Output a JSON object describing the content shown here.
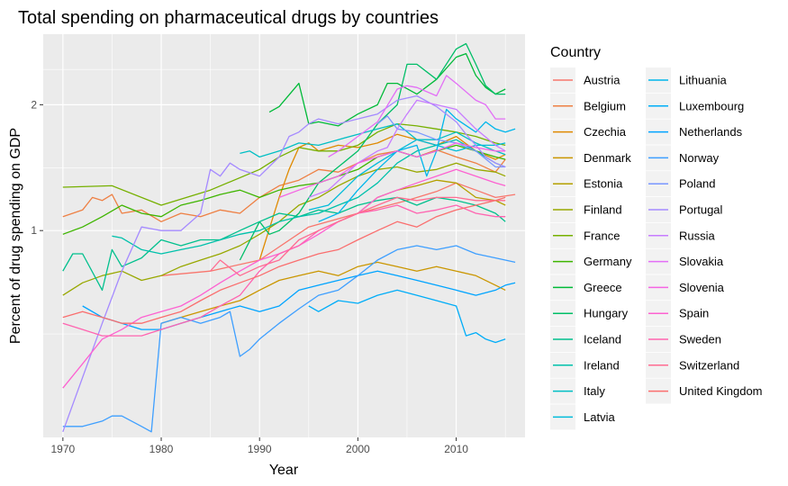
{
  "chart_data": {
    "type": "line",
    "title": "Total spending on pharmaceutical drugs by countries",
    "xlabel": "Year",
    "ylabel": "Percent of drug spending on GDP",
    "y_scale": "log",
    "xlim": [
      1968,
      2017
    ],
    "ylim": [
      0.32,
      2.95
    ],
    "x_ticks": [
      1970,
      1980,
      1990,
      2000,
      2010
    ],
    "y_ticks": [
      1,
      2
    ],
    "grid": true,
    "legend": {
      "title": "Country",
      "position": "right",
      "columns": 2
    },
    "series": [
      {
        "name": "Austria",
        "color": "#F8766D",
        "x": [
          1980,
          1985,
          1990,
          1995,
          2000,
          2005,
          2008,
          2010,
          2012,
          2014,
          2016
        ],
        "y": [
          0.78,
          0.8,
          0.85,
          1.02,
          1.1,
          1.18,
          1.24,
          1.3,
          1.25,
          1.2,
          1.22
        ]
      },
      {
        "name": "Belgium",
        "color": "#EE8044",
        "x": [
          1970,
          1972,
          1973,
          1974,
          1975,
          1976,
          1978,
          1980,
          1982,
          1984,
          1986,
          1988,
          1990,
          1992,
          1994,
          1996,
          1998,
          2000,
          2002,
          2004,
          2006,
          2008,
          2010,
          2012,
          2014,
          2015
        ],
        "y": [
          1.08,
          1.12,
          1.2,
          1.18,
          1.22,
          1.1,
          1.12,
          1.05,
          1.1,
          1.08,
          1.12,
          1.1,
          1.2,
          1.28,
          1.32,
          1.4,
          1.38,
          1.45,
          1.52,
          1.55,
          1.5,
          1.56,
          1.5,
          1.45,
          1.38,
          1.48
        ]
      },
      {
        "name": "Czechia",
        "color": "#DF8A00",
        "x": [
          1990,
          1992,
          1993,
          1994,
          1995,
          1996,
          1998,
          2000,
          2002,
          2004,
          2006,
          2008,
          2010,
          2012,
          2014,
          2015
        ],
        "y": [
          0.85,
          1.2,
          1.4,
          1.58,
          1.62,
          1.55,
          1.6,
          1.58,
          1.62,
          1.7,
          1.65,
          1.6,
          1.68,
          1.55,
          1.48,
          1.52
        ]
      },
      {
        "name": "Denmark",
        "color": "#CA9600",
        "x": [
          1980,
          1982,
          1984,
          1986,
          1988,
          1990,
          1992,
          1994,
          1996,
          1998,
          2000,
          2002,
          2004,
          2006,
          2008,
          2010,
          2012,
          2014,
          2015
        ],
        "y": [
          0.6,
          0.62,
          0.64,
          0.66,
          0.68,
          0.72,
          0.76,
          0.78,
          0.8,
          0.78,
          0.82,
          0.84,
          0.82,
          0.8,
          0.82,
          0.8,
          0.78,
          0.74,
          0.72
        ]
      },
      {
        "name": "Estonia",
        "color": "#B4A000",
        "x": [
          1998,
          2000,
          2002,
          2004,
          2006,
          2008,
          2010,
          2012,
          2014,
          2015
        ],
        "y": [
          1.05,
          1.1,
          1.2,
          1.25,
          1.28,
          1.32,
          1.3,
          1.2,
          1.18,
          1.15
        ]
      },
      {
        "name": "Finland",
        "color": "#98A800",
        "x": [
          1970,
          1972,
          1974,
          1976,
          1978,
          1980,
          1982,
          1984,
          1986,
          1988,
          1990,
          1992,
          1994,
          1996,
          1998,
          2000,
          2002,
          2004,
          2006,
          2008,
          2010,
          2012,
          2014,
          2015
        ],
        "y": [
          0.7,
          0.75,
          0.78,
          0.8,
          0.76,
          0.78,
          0.82,
          0.85,
          0.88,
          0.92,
          0.98,
          1.05,
          1.15,
          1.2,
          1.28,
          1.35,
          1.4,
          1.42,
          1.38,
          1.4,
          1.45,
          1.4,
          1.38,
          1.35
        ]
      },
      {
        "name": "France",
        "color": "#76B000",
        "x": [
          1970,
          1975,
          1980,
          1985,
          1990,
          1992,
          1994,
          1996,
          1998,
          2000,
          2002,
          2004,
          2006,
          2008,
          2010,
          2012,
          2014,
          2015
        ],
        "y": [
          1.27,
          1.28,
          1.15,
          1.25,
          1.4,
          1.5,
          1.58,
          1.55,
          1.55,
          1.6,
          1.72,
          1.8,
          1.78,
          1.75,
          1.72,
          1.68,
          1.62,
          1.6
        ]
      },
      {
        "name": "Germany",
        "color": "#3EB500",
        "x": [
          1970,
          1972,
          1974,
          1976,
          1978,
          1980,
          1982,
          1984,
          1986,
          1988,
          1990,
          1992,
          1994,
          1996,
          1998,
          2000,
          2002,
          2004,
          2006,
          2008,
          2010,
          2012,
          2014,
          2015
        ],
        "y": [
          0.98,
          1.02,
          1.08,
          1.15,
          1.1,
          1.08,
          1.15,
          1.18,
          1.22,
          1.25,
          1.2,
          1.25,
          1.28,
          1.3,
          1.35,
          1.4,
          1.5,
          1.55,
          1.5,
          1.55,
          1.6,
          1.55,
          1.5,
          1.48
        ]
      },
      {
        "name": "Greece",
        "color": "#00BA38",
        "x": [
          1991,
          1992,
          1994,
          1995,
          1996,
          1998,
          2000,
          2002,
          2003,
          2004,
          2006,
          2008,
          2010,
          2011,
          2012,
          2013,
          2014,
          2015
        ],
        "y": [
          1.92,
          1.98,
          2.25,
          1.8,
          1.82,
          1.78,
          1.9,
          2.0,
          2.25,
          2.25,
          2.12,
          2.3,
          2.6,
          2.65,
          2.35,
          2.2,
          2.12,
          2.18
        ]
      },
      {
        "name": "Hungary",
        "color": "#00BE67",
        "x": [
          1988,
          1990,
          1991,
          1992,
          1994,
          1996,
          1998,
          2000,
          2002,
          2004,
          2005,
          2006,
          2008,
          2010,
          2011,
          2012,
          2013,
          2014,
          2015
        ],
        "y": [
          0.85,
          1.05,
          0.98,
          1.0,
          1.1,
          1.3,
          1.42,
          1.55,
          1.8,
          2.0,
          2.5,
          2.5,
          2.3,
          2.72,
          2.8,
          2.5,
          2.22,
          2.12,
          2.12
        ]
      },
      {
        "name": "Iceland",
        "color": "#00C08D",
        "x": [
          1970,
          1971,
          1972,
          1974,
          1975,
          1976,
          1978,
          1980,
          1982,
          1984,
          1986,
          1988,
          1990,
          1992,
          1994,
          1996,
          1998,
          2000,
          2002,
          2004,
          2006,
          2008,
          2010,
          2012,
          2014,
          2015
        ],
        "y": [
          0.8,
          0.88,
          0.88,
          0.72,
          0.9,
          0.82,
          0.86,
          0.95,
          0.92,
          0.95,
          0.95,
          1.0,
          1.05,
          1.1,
          1.08,
          1.12,
          1.1,
          1.15,
          1.18,
          1.2,
          1.15,
          1.2,
          1.18,
          1.15,
          1.1,
          1.05
        ]
      },
      {
        "name": "Ireland",
        "color": "#00C1AB",
        "x": [
          1975,
          1976,
          1978,
          1980,
          1982,
          1984,
          1986,
          1988,
          1990,
          1992,
          1994,
          1996,
          1998,
          2000,
          2002,
          2004,
          2006,
          2008,
          2010,
          2012,
          2014,
          2015
        ],
        "y": [
          0.97,
          0.96,
          0.9,
          0.88,
          0.9,
          0.92,
          0.95,
          0.98,
          1.0,
          1.05,
          1.08,
          1.1,
          1.15,
          1.2,
          1.3,
          1.45,
          1.55,
          1.6,
          1.65,
          1.55,
          1.45,
          1.42
        ]
      },
      {
        "name": "Italy",
        "color": "#00BFC4",
        "x": [
          1988,
          1989,
          1990,
          1992,
          1994,
          1996,
          1998,
          2000,
          2002,
          2004,
          2006,
          2008,
          2010,
          2012,
          2014,
          2015
        ],
        "y": [
          1.53,
          1.55,
          1.5,
          1.55,
          1.62,
          1.6,
          1.65,
          1.7,
          1.75,
          1.8,
          1.65,
          1.65,
          1.72,
          1.62,
          1.55,
          1.52
        ]
      },
      {
        "name": "Latvia",
        "color": "#00BBDA",
        "x": [
          1995,
          1997,
          2000,
          2002,
          2004,
          2006,
          2008,
          2010,
          2012,
          2014,
          2015
        ],
        "y": [
          1.12,
          1.15,
          1.35,
          1.45,
          1.55,
          1.65,
          1.6,
          1.55,
          1.6,
          1.6,
          1.62
        ]
      },
      {
        "name": "Lithuania",
        "color": "#00B6EB",
        "x": [
          1996,
          1998,
          2000,
          2002,
          2004,
          2006,
          2007,
          2008,
          2009,
          2010,
          2012,
          2013,
          2014,
          2015,
          2016
        ],
        "y": [
          1.05,
          1.1,
          1.25,
          1.4,
          1.55,
          1.6,
          1.35,
          1.55,
          1.95,
          1.85,
          1.72,
          1.82,
          1.75,
          1.72,
          1.75
        ]
      },
      {
        "name": "Luxembourg",
        "color": "#00ADF8",
        "x": [
          1995,
          1996,
          1998,
          2000,
          2002,
          2004,
          2006,
          2008,
          2010,
          2011,
          2012,
          2013,
          2014,
          2015
        ],
        "y": [
          0.66,
          0.64,
          0.68,
          0.67,
          0.7,
          0.72,
          0.7,
          0.68,
          0.66,
          0.56,
          0.57,
          0.55,
          0.54,
          0.55
        ]
      },
      {
        "name": "Netherlands",
        "color": "#00A4FF",
        "x": [
          1972,
          1974,
          1976,
          1978,
          1980,
          1982,
          1984,
          1986,
          1988,
          1990,
          1992,
          1994,
          1996,
          1998,
          2000,
          2002,
          2004,
          2006,
          2008,
          2010,
          2012,
          2014,
          2015,
          2016
        ],
        "y": [
          0.66,
          0.62,
          0.6,
          0.58,
          0.58,
          0.6,
          0.62,
          0.64,
          0.66,
          0.64,
          0.66,
          0.72,
          0.74,
          0.76,
          0.78,
          0.8,
          0.78,
          0.76,
          0.74,
          0.72,
          0.7,
          0.72,
          0.74,
          0.75
        ]
      },
      {
        "name": "Norway",
        "color": "#3E9FFF",
        "x": [
          1970,
          1972,
          1974,
          1975,
          1976,
          1978,
          1979,
          1980,
          1982,
          1984,
          1986,
          1987,
          1988,
          1989,
          1990,
          1992,
          1994,
          1996,
          1998,
          2000,
          2002,
          2004,
          2006,
          2008,
          2010,
          2012,
          2014,
          2016
        ],
        "y": [
          0.34,
          0.34,
          0.35,
          0.36,
          0.36,
          0.34,
          0.33,
          0.6,
          0.62,
          0.6,
          0.62,
          0.64,
          0.5,
          0.52,
          0.55,
          0.6,
          0.65,
          0.7,
          0.72,
          0.78,
          0.85,
          0.9,
          0.92,
          0.9,
          0.92,
          0.88,
          0.86,
          0.84
        ]
      },
      {
        "name": "Poland",
        "color": "#7997FF",
        "x": [
          2002,
          2003,
          2004,
          2006,
          2008,
          2010,
          2012,
          2014,
          2015
        ],
        "y": [
          1.8,
          1.88,
          1.75,
          1.72,
          1.65,
          1.62,
          1.55,
          1.42,
          1.42
        ]
      },
      {
        "name": "Portugal",
        "color": "#A58AFF",
        "x": [
          1970,
          1974,
          1976,
          1978,
          1980,
          1982,
          1984,
          1985,
          1986,
          1987,
          1988,
          1990,
          1992,
          1993,
          1994,
          1995,
          1996,
          1998,
          2000,
          2002,
          2004,
          2006,
          2008,
          2010,
          2011,
          2012,
          2013,
          2014,
          2015
        ],
        "y": [
          0.33,
          0.6,
          0.8,
          1.02,
          1.0,
          1.0,
          1.1,
          1.4,
          1.35,
          1.45,
          1.4,
          1.35,
          1.5,
          1.68,
          1.72,
          1.8,
          1.85,
          1.8,
          1.85,
          1.9,
          2.05,
          2.1,
          1.98,
          1.82,
          1.7,
          1.6,
          1.5,
          1.45,
          1.42
        ]
      },
      {
        "name": "Russia",
        "color": "#C77CFF",
        "x": [
          1995,
          1997,
          2000,
          2002,
          2003,
          2004,
          2005,
          2006,
          2008,
          2010,
          2012,
          2014,
          2015
        ],
        "y": [
          1.2,
          1.25,
          1.45,
          1.55,
          1.58,
          1.75,
          1.9,
          2.05,
          2.0,
          1.95,
          1.75,
          1.6,
          1.55
        ]
      },
      {
        "name": "Slovakia",
        "color": "#E36EF6",
        "x": [
          1997,
          1998,
          2000,
          2002,
          2004,
          2005,
          2006,
          2008,
          2009,
          2010,
          2012,
          2013,
          2014,
          2015
        ],
        "y": [
          1.5,
          1.55,
          1.68,
          1.82,
          2.18,
          2.22,
          2.2,
          2.1,
          2.35,
          2.25,
          2.05,
          2.0,
          1.85,
          1.85
        ]
      },
      {
        "name": "Slovenia",
        "color": "#F564E3",
        "x": [
          1992,
          1994,
          1996,
          1998,
          2000,
          2002,
          2004,
          2006,
          2008,
          2010,
          2012,
          2014,
          2015
        ],
        "y": [
          1.2,
          1.25,
          1.3,
          1.35,
          1.45,
          1.5,
          1.55,
          1.5,
          1.55,
          1.62,
          1.58,
          1.55,
          1.55
        ]
      },
      {
        "name": "Spain",
        "color": "#FD61D1",
        "x": [
          1970,
          1972,
          1974,
          1976,
          1978,
          1980,
          1982,
          1984,
          1986,
          1988,
          1990,
          1992,
          1994,
          1996,
          1998,
          2000,
          2002,
          2004,
          2006,
          2008,
          2010,
          2012,
          2014,
          2015
        ],
        "y": [
          0.42,
          0.48,
          0.55,
          0.58,
          0.62,
          0.64,
          0.66,
          0.7,
          0.75,
          0.8,
          0.85,
          0.88,
          0.92,
          0.98,
          1.05,
          1.1,
          1.2,
          1.25,
          1.3,
          1.35,
          1.4,
          1.35,
          1.3,
          1.28
        ]
      },
      {
        "name": "Sweden",
        "color": "#FF64B0",
        "x": [
          1970,
          1972,
          1974,
          1976,
          1978,
          1980,
          1982,
          1984,
          1986,
          1988,
          1990,
          1992,
          1994,
          1996,
          1998,
          2000,
          2002,
          2004,
          2006,
          2008,
          2010,
          2012,
          2014,
          2015
        ],
        "y": [
          0.6,
          0.58,
          0.56,
          0.56,
          0.56,
          0.58,
          0.6,
          0.62,
          0.66,
          0.7,
          0.8,
          0.88,
          0.92,
          1.0,
          1.05,
          1.1,
          1.12,
          1.15,
          1.1,
          1.12,
          1.15,
          1.1,
          1.08,
          1.08
        ]
      },
      {
        "name": "Switzerland",
        "color": "#FF6C91",
        "x": [
          1985,
          1986,
          1988,
          1990,
          1992,
          1994,
          1996,
          1998,
          2000,
          2002,
          2004,
          2006,
          2008,
          2010,
          2012,
          2014,
          2015
        ],
        "y": [
          0.8,
          0.85,
          0.78,
          0.82,
          0.85,
          0.95,
          1.0,
          1.05,
          1.1,
          1.15,
          1.2,
          1.18,
          1.2,
          1.2,
          1.18,
          1.18,
          1.18
        ]
      },
      {
        "name": "United Kingdom",
        "color": "#FA6E6E",
        "x": [
          1970,
          1972,
          1974,
          1976,
          1978,
          1980,
          1982,
          1984,
          1986,
          1988,
          1990,
          1992,
          1994,
          1996,
          1998,
          2000,
          2002,
          2004,
          2006,
          2008,
          2010,
          2012,
          2014,
          2015
        ],
        "y": [
          0.62,
          0.64,
          0.62,
          0.6,
          0.6,
          0.62,
          0.64,
          0.68,
          0.72,
          0.75,
          0.78,
          0.82,
          0.85,
          0.88,
          0.9,
          0.95,
          1.0,
          1.05,
          1.02,
          1.08,
          1.12,
          1.15,
          1.18,
          1.2
        ]
      }
    ]
  }
}
